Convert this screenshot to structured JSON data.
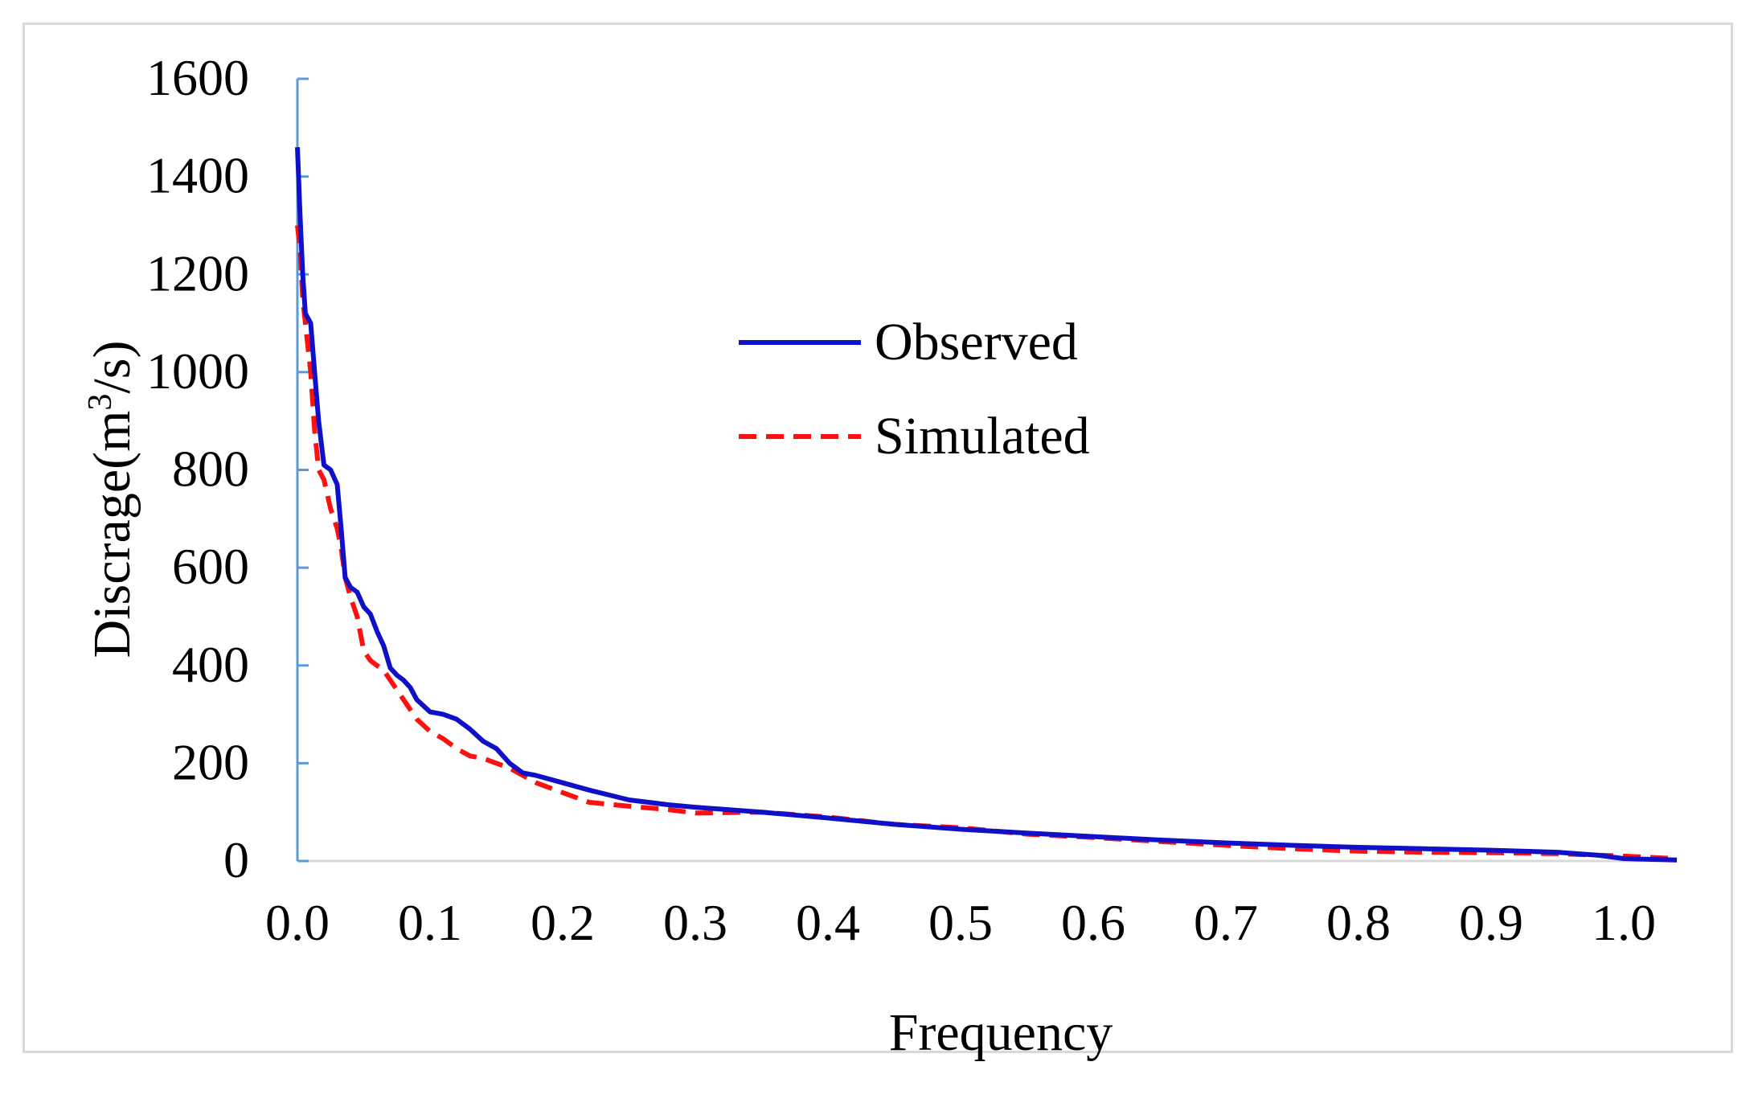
{
  "chart_data": {
    "type": "line",
    "title": "",
    "xlabel": "Frequency",
    "ylabel_main": "Discrage(m",
    "ylabel_sup": "3",
    "ylabel_tail": "/s)",
    "xlim": [
      0.0,
      1.04
    ],
    "ylim": [
      0,
      1600
    ],
    "xticks": [
      "0.0",
      "0.1",
      "0.2",
      "0.3",
      "0.4",
      "0.5",
      "0.6",
      "0.7",
      "0.8",
      "0.9",
      "1.0"
    ],
    "xtick_values": [
      0.0,
      0.1,
      0.2,
      0.3,
      0.4,
      0.5,
      0.6,
      0.7,
      0.8,
      0.9,
      1.0
    ],
    "yticks": [
      "0",
      "200",
      "400",
      "600",
      "800",
      "1000",
      "1200",
      "1400",
      "1600"
    ],
    "ytick_values": [
      0,
      200,
      400,
      600,
      800,
      1000,
      1200,
      1400,
      1600
    ],
    "legend_position": "center",
    "series": [
      {
        "name": "Observed",
        "color": "#1010c8",
        "style": "solid",
        "x": [
          0.0,
          0.002,
          0.004,
          0.006,
          0.008,
          0.01,
          0.013,
          0.016,
          0.02,
          0.025,
          0.03,
          0.033,
          0.036,
          0.04,
          0.045,
          0.05,
          0.055,
          0.06,
          0.065,
          0.07,
          0.075,
          0.08,
          0.085,
          0.09,
          0.1,
          0.11,
          0.12,
          0.13,
          0.14,
          0.15,
          0.16,
          0.17,
          0.18,
          0.2,
          0.22,
          0.25,
          0.28,
          0.3,
          0.35,
          0.4,
          0.45,
          0.5,
          0.55,
          0.6,
          0.65,
          0.7,
          0.75,
          0.8,
          0.85,
          0.9,
          0.95,
          0.98,
          1.0,
          1.04
        ],
        "values": [
          1460,
          1320,
          1200,
          1120,
          1110,
          1100,
          1000,
          900,
          810,
          800,
          770,
          680,
          580,
          560,
          550,
          520,
          505,
          470,
          440,
          395,
          380,
          370,
          355,
          330,
          305,
          300,
          290,
          270,
          245,
          230,
          200,
          180,
          175,
          160,
          145,
          125,
          115,
          110,
          100,
          88,
          75,
          65,
          57,
          50,
          43,
          37,
          32,
          28,
          25,
          22,
          18,
          12,
          5,
          2
        ]
      },
      {
        "name": "Simulated",
        "color": "#ff1010",
        "style": "dashed",
        "x": [
          0.0,
          0.002,
          0.004,
          0.006,
          0.008,
          0.01,
          0.013,
          0.016,
          0.02,
          0.025,
          0.03,
          0.033,
          0.036,
          0.04,
          0.045,
          0.05,
          0.055,
          0.06,
          0.065,
          0.07,
          0.075,
          0.08,
          0.085,
          0.09,
          0.1,
          0.11,
          0.12,
          0.13,
          0.14,
          0.15,
          0.16,
          0.17,
          0.18,
          0.2,
          0.22,
          0.25,
          0.28,
          0.3,
          0.35,
          0.4,
          0.45,
          0.5,
          0.55,
          0.6,
          0.65,
          0.7,
          0.75,
          0.8,
          0.85,
          0.9,
          0.95,
          0.98,
          1.0,
          1.04
        ],
        "values": [
          1300,
          1250,
          1150,
          1100,
          1050,
          1000,
          880,
          800,
          780,
          720,
          680,
          640,
          580,
          540,
          500,
          430,
          410,
          400,
          390,
          370,
          350,
          330,
          310,
          290,
          265,
          250,
          230,
          215,
          210,
          200,
          190,
          175,
          160,
          140,
          120,
          112,
          105,
          98,
          100,
          90,
          75,
          68,
          55,
          48,
          40,
          32,
          25,
          20,
          18,
          17,
          15,
          12,
          10,
          5
        ]
      }
    ]
  }
}
